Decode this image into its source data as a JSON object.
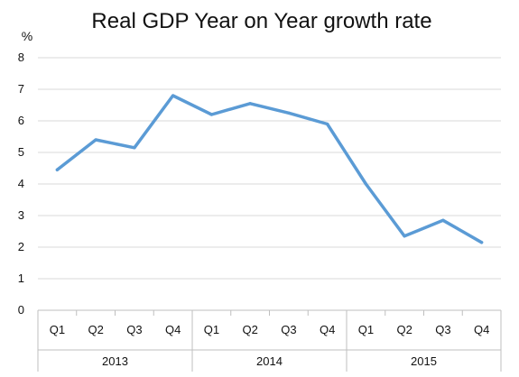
{
  "chart_data": {
    "type": "line",
    "title": "Real GDP Year on Year growth rate",
    "ylabel": "%",
    "xlabel": "",
    "ylim": [
      0,
      8
    ],
    "yticks": [
      0,
      1,
      2,
      3,
      4,
      5,
      6,
      7,
      8
    ],
    "grid": true,
    "legend": "none",
    "categories": [
      "Q1",
      "Q2",
      "Q3",
      "Q4",
      "Q1",
      "Q2",
      "Q3",
      "Q4",
      "Q1",
      "Q2",
      "Q3",
      "Q4"
    ],
    "category_groups": [
      {
        "label": "2013",
        "count": 4
      },
      {
        "label": "2014",
        "count": 4
      },
      {
        "label": "2015",
        "count": 4
      }
    ],
    "series": [
      {
        "values": [
          4.45,
          5.4,
          5.15,
          6.8,
          6.2,
          6.55,
          6.25,
          5.9,
          4.0,
          2.35,
          2.85,
          2.15
        ],
        "color": "#5b9bd5"
      }
    ],
    "colors": {
      "line": "#5b9bd5",
      "grid": "#d9d9d9",
      "axis": "#bfbfbf"
    }
  }
}
